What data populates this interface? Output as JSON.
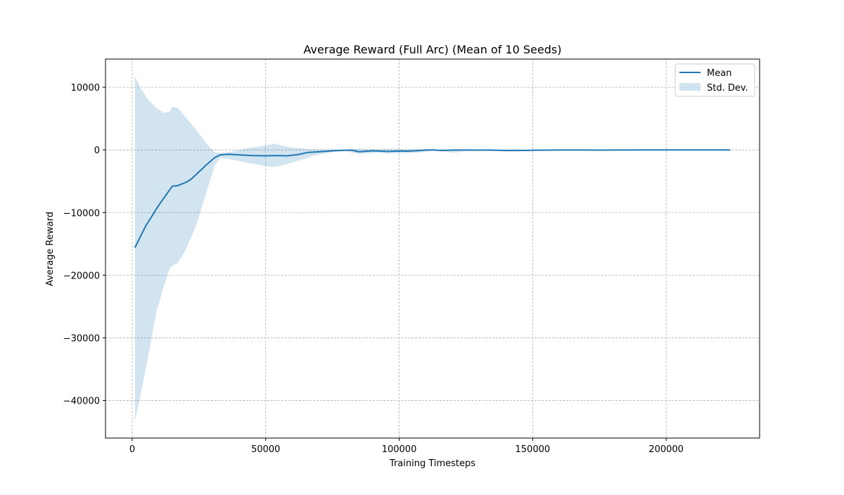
{
  "chart_data": {
    "type": "line",
    "title": "Average Reward (Full Arc) (Mean of 10 Seeds)",
    "xlabel": "Training Timesteps",
    "ylabel": "Average Reward",
    "xlim": [
      -10000,
      235000
    ],
    "ylim": [
      -46000,
      14500
    ],
    "xticks": [
      0,
      50000,
      100000,
      150000,
      200000
    ],
    "xtick_labels": [
      "0",
      "50000",
      "100000",
      "150000",
      "200000"
    ],
    "yticks": [
      10000,
      0,
      -10000,
      -20000,
      -30000,
      -40000
    ],
    "ytick_labels": [
      "10000",
      "0",
      "−10000",
      "−20000",
      "−30000",
      "−40000"
    ],
    "grid": true,
    "legend_position": "top-right",
    "colors": {
      "mean": "#1f77b4",
      "band": "#1f77b4"
    },
    "series": [
      {
        "name": "Mean",
        "kind": "line",
        "x": [
          1000,
          5000,
          10000,
          15000,
          17000,
          20000,
          22000,
          25000,
          28000,
          31000,
          33000,
          36000,
          40000,
          45000,
          50000,
          55000,
          58000,
          62000,
          66000,
          70000,
          75000,
          78000,
          80000,
          82000,
          85000,
          88000,
          90000,
          93000,
          96000,
          100000,
          103000,
          106000,
          110000,
          113000,
          116000,
          120000,
          125000,
          130000,
          133000,
          136000,
          140000,
          145000,
          148000,
          150000,
          155000,
          160000,
          165000,
          170000,
          175000,
          180000,
          190000,
          200000,
          210000,
          224000
        ],
        "values": [
          -15600,
          -12200,
          -8800,
          -5800,
          -5700,
          -5200,
          -4700,
          -3500,
          -2300,
          -1200,
          -800,
          -700,
          -800,
          -900,
          -950,
          -900,
          -950,
          -750,
          -400,
          -300,
          -150,
          -80,
          -50,
          -30,
          -300,
          -200,
          -150,
          -200,
          -250,
          -180,
          -200,
          -150,
          -30,
          -10,
          -100,
          -30,
          -20,
          -40,
          -20,
          -50,
          -100,
          -80,
          -90,
          -50,
          -40,
          -30,
          -20,
          -30,
          -40,
          -20,
          -10,
          -5,
          -5,
          -5
        ]
      },
      {
        "name": "Std. Dev.",
        "kind": "band",
        "x": [
          1000,
          3000,
          6000,
          9000,
          12000,
          14000,
          15000,
          17000,
          20000,
          24000,
          28000,
          31000,
          33000,
          36000,
          40000,
          45000,
          50000,
          53000,
          56000,
          60000,
          64000,
          68000,
          72000,
          76000,
          80000,
          84000,
          88000,
          92000,
          96000,
          100000,
          104000,
          108000,
          112000,
          116000,
          120000,
          125000,
          130000,
          135000,
          140000,
          145000,
          150000,
          155000,
          160000,
          170000,
          180000,
          200000,
          224000
        ],
        "upper": [
          11800,
          10000,
          8000,
          6700,
          5900,
          6100,
          6900,
          6700,
          5200,
          3200,
          900,
          -400,
          -500,
          -400,
          0,
          400,
          700,
          1000,
          700,
          400,
          200,
          100,
          60,
          40,
          40,
          200,
          150,
          100,
          200,
          150,
          120,
          100,
          70,
          60,
          60,
          50,
          40,
          30,
          30,
          30,
          20,
          20,
          20,
          15,
          10,
          5,
          5
        ],
        "lower": [
          -43300,
          -39500,
          -33000,
          -26000,
          -21500,
          -19000,
          -18500,
          -18100,
          -16000,
          -12000,
          -6500,
          -2400,
          -1300,
          -1400,
          -1800,
          -2200,
          -2600,
          -2700,
          -2500,
          -2000,
          -1500,
          -900,
          -600,
          -300,
          -200,
          -600,
          -550,
          -450,
          -550,
          -500,
          -520,
          -400,
          -150,
          -100,
          -500,
          -200,
          -150,
          -150,
          -200,
          -250,
          -150,
          -120,
          -90,
          -80,
          -60,
          -40,
          -30
        ]
      }
    ]
  }
}
